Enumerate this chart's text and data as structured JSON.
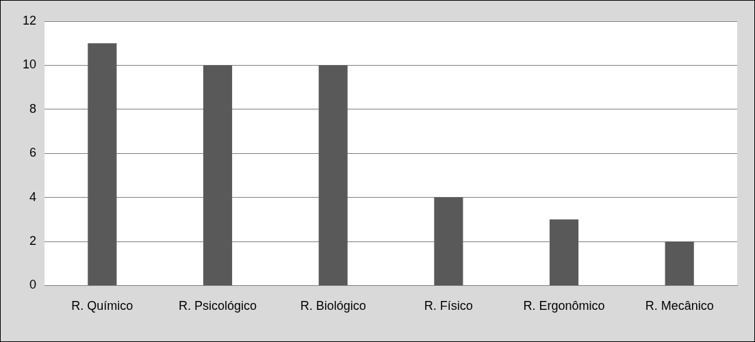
{
  "chart_data": {
    "type": "bar",
    "categories": [
      "R. Químico",
      "R. Psicológico",
      "R. Biológico",
      "R. Físico",
      "R. Ergonômico",
      "R. Mecânico"
    ],
    "values": [
      11,
      10,
      10,
      4,
      3,
      2
    ],
    "color": "#595959",
    "ylim": [
      0,
      12
    ],
    "yticks": [
      0,
      2,
      4,
      6,
      8,
      10,
      12
    ],
    "grid": "y",
    "legend": false
  }
}
